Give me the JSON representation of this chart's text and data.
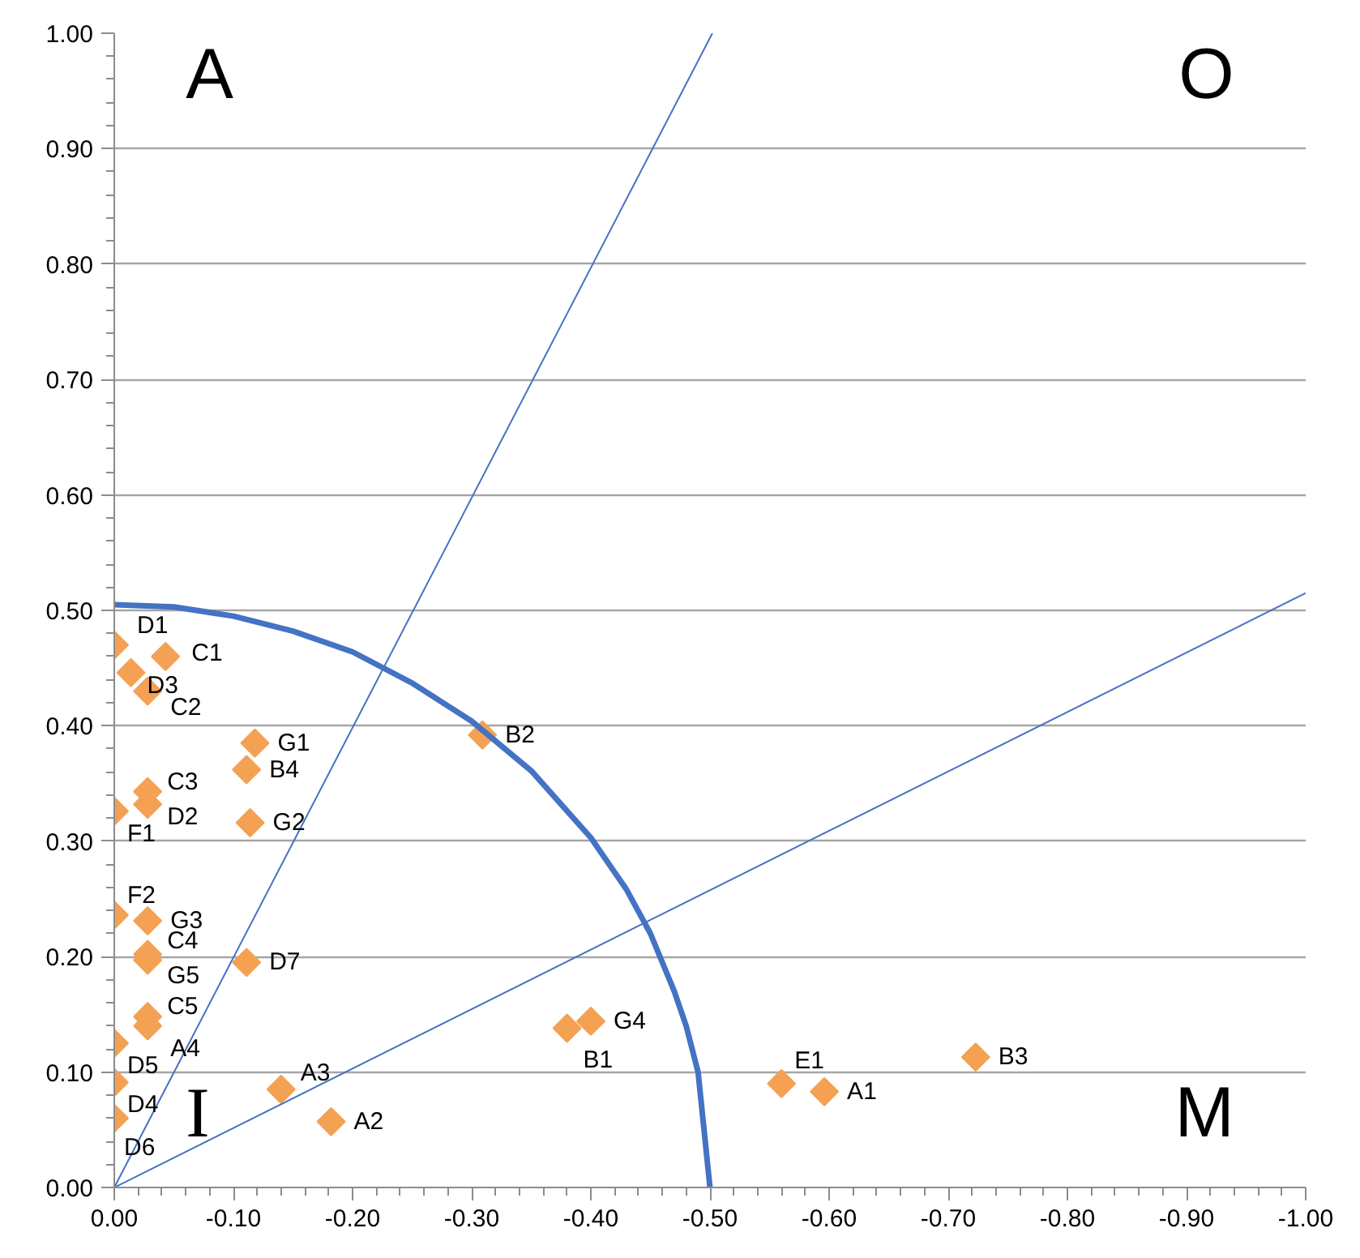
{
  "chart_data": {
    "type": "scatter",
    "x": [
      0.0,
      -0.014,
      -0.043,
      -0.028,
      -0.118,
      -0.111,
      -0.028,
      -0.028,
      0.0,
      -0.114,
      0.0,
      -0.028,
      -0.028,
      -0.028,
      -0.111,
      -0.028,
      -0.028,
      0.0,
      0.0,
      0.0,
      -0.14,
      -0.182,
      -0.309,
      -0.38,
      -0.4,
      -0.56,
      -0.596,
      -0.723
    ],
    "series": [
      {
        "color": "#f4a153",
        "values": [
          0.47,
          0.446,
          0.46,
          0.43,
          0.385,
          0.362,
          0.343,
          0.332,
          0.326,
          0.316,
          0.236,
          0.231,
          0.202,
          0.197,
          0.195,
          0.148,
          0.14,
          0.125,
          0.091,
          0.06,
          0.085,
          0.057,
          0.392,
          0.138,
          0.144,
          0.09,
          0.083,
          0.113
        ]
      },
      {
        "type": "line",
        "marker": "none",
        "color": "#4472c4",
        "x": [
          0.0,
          -0.502
        ],
        "values": [
          0.0,
          1.0
        ]
      },
      {
        "type": "line",
        "marker": "none",
        "color": "#4472c4",
        "x": [
          0.0,
          -1.0
        ],
        "values": [
          0.0,
          0.515
        ]
      },
      {
        "type": "line",
        "marker": "none",
        "color": "#4472c4",
        "x": [
          0.0,
          -0.05,
          -0.1,
          -0.15,
          -0.2,
          -0.25,
          -0.3,
          -0.35,
          -0.4,
          -0.43,
          -0.45,
          -0.47,
          -0.48,
          -0.49,
          -0.5
        ],
        "values": [
          0.505,
          0.503,
          0.495,
          0.482,
          0.464,
          0.437,
          0.404,
          0.361,
          0.303,
          0.258,
          0.22,
          0.17,
          0.14,
          0.1,
          0.0
        ]
      }
    ],
    "marker": "diamond",
    "xlim": [
      0.0,
      -1.0
    ],
    "ylim": [
      0.0,
      1.0
    ],
    "xticks": [
      {
        "value": 0.0,
        "label": "0.00"
      },
      {
        "value": -0.1,
        "label": "-0.10"
      },
      {
        "value": -0.2,
        "label": "-0.20"
      },
      {
        "value": -0.3,
        "label": "-0.30"
      },
      {
        "value": -0.4,
        "label": "-0.40"
      },
      {
        "value": -0.5,
        "label": "-0.50"
      },
      {
        "value": -0.6,
        "label": "-0.60"
      },
      {
        "value": -0.7,
        "label": "-0.70"
      },
      {
        "value": -0.8,
        "label": "-0.80"
      },
      {
        "value": -0.9,
        "label": "-0.90"
      },
      {
        "value": -1.0,
        "label": "-1.00"
      }
    ],
    "yticks": [
      {
        "value": 0.0,
        "label": "0.00"
      },
      {
        "value": 0.1,
        "label": "0.10"
      },
      {
        "value": 0.2,
        "label": "0.20"
      },
      {
        "value": 0.3,
        "label": "0.30"
      },
      {
        "value": 0.4,
        "label": "0.40"
      },
      {
        "value": 0.5,
        "label": "0.50"
      },
      {
        "value": 0.6,
        "label": "0.60"
      },
      {
        "value": 0.7,
        "label": "0.70"
      },
      {
        "value": 0.8,
        "label": "0.80"
      },
      {
        "value": 0.9,
        "label": "0.90"
      },
      {
        "value": 1.0,
        "label": "1.00"
      }
    ],
    "grid": "y",
    "annotations": [
      {
        "text": "D1",
        "x": 0.0,
        "y": 0.47
      },
      {
        "text": "D3",
        "x": -0.014,
        "y": 0.446
      },
      {
        "text": "C1",
        "x": -0.043,
        "y": 0.46
      },
      {
        "text": "C2",
        "x": -0.028,
        "y": 0.43
      },
      {
        "text": "G1",
        "x": -0.118,
        "y": 0.385
      },
      {
        "text": "B4",
        "x": -0.111,
        "y": 0.362
      },
      {
        "text": "C3",
        "x": -0.028,
        "y": 0.343
      },
      {
        "text": "D2",
        "x": -0.028,
        "y": 0.332
      },
      {
        "text": "F1",
        "x": 0.0,
        "y": 0.326
      },
      {
        "text": "G2",
        "x": -0.114,
        "y": 0.316
      },
      {
        "text": "F2",
        "x": 0.0,
        "y": 0.236
      },
      {
        "text": "G3",
        "x": -0.028,
        "y": 0.231
      },
      {
        "text": "C4",
        "x": -0.028,
        "y": 0.202
      },
      {
        "text": "G5",
        "x": -0.028,
        "y": 0.197
      },
      {
        "text": "D7",
        "x": -0.111,
        "y": 0.195
      },
      {
        "text": "C5",
        "x": -0.028,
        "y": 0.148
      },
      {
        "text": "A4",
        "x": -0.028,
        "y": 0.14
      },
      {
        "text": "D5",
        "x": 0.0,
        "y": 0.125
      },
      {
        "text": "D4",
        "x": 0.0,
        "y": 0.091
      },
      {
        "text": "D6",
        "x": 0.0,
        "y": 0.06
      },
      {
        "text": "A3",
        "x": -0.14,
        "y": 0.085
      },
      {
        "text": "A2",
        "x": -0.182,
        "y": 0.057
      },
      {
        "text": "B2",
        "x": -0.309,
        "y": 0.392
      },
      {
        "text": "B1",
        "x": -0.38,
        "y": 0.138
      },
      {
        "text": "G4",
        "x": -0.4,
        "y": 0.144
      },
      {
        "text": "E1",
        "x": -0.56,
        "y": 0.09
      },
      {
        "text": "A1",
        "x": -0.596,
        "y": 0.083
      },
      {
        "text": "B3",
        "x": -0.723,
        "y": 0.113
      },
      "A",
      "O",
      "I",
      "M"
    ]
  }
}
